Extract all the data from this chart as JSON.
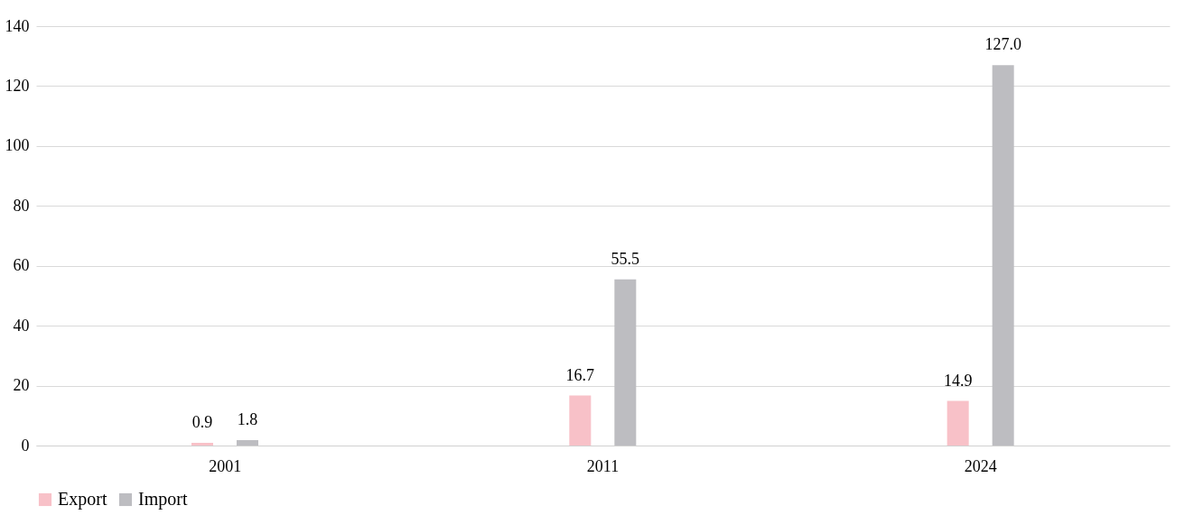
{
  "chart_data": {
    "type": "bar",
    "categories": [
      "2001",
      "2011",
      "2024"
    ],
    "series": [
      {
        "name": "Export",
        "color": "#f8c1c8",
        "values": [
          0.9,
          16.7,
          14.9
        ],
        "value_labels": [
          "0.9",
          "16.7",
          "14.9"
        ]
      },
      {
        "name": "Import",
        "color": "#bdbdc1",
        "values": [
          1.8,
          55.5,
          127.0
        ],
        "value_labels": [
          "1.8",
          "55.5",
          "127.0"
        ]
      }
    ],
    "ylim": [
      0,
      140
    ],
    "yticks": [
      0,
      20,
      40,
      60,
      80,
      100,
      120,
      140
    ],
    "grid": "y",
    "legend": "bottom"
  }
}
